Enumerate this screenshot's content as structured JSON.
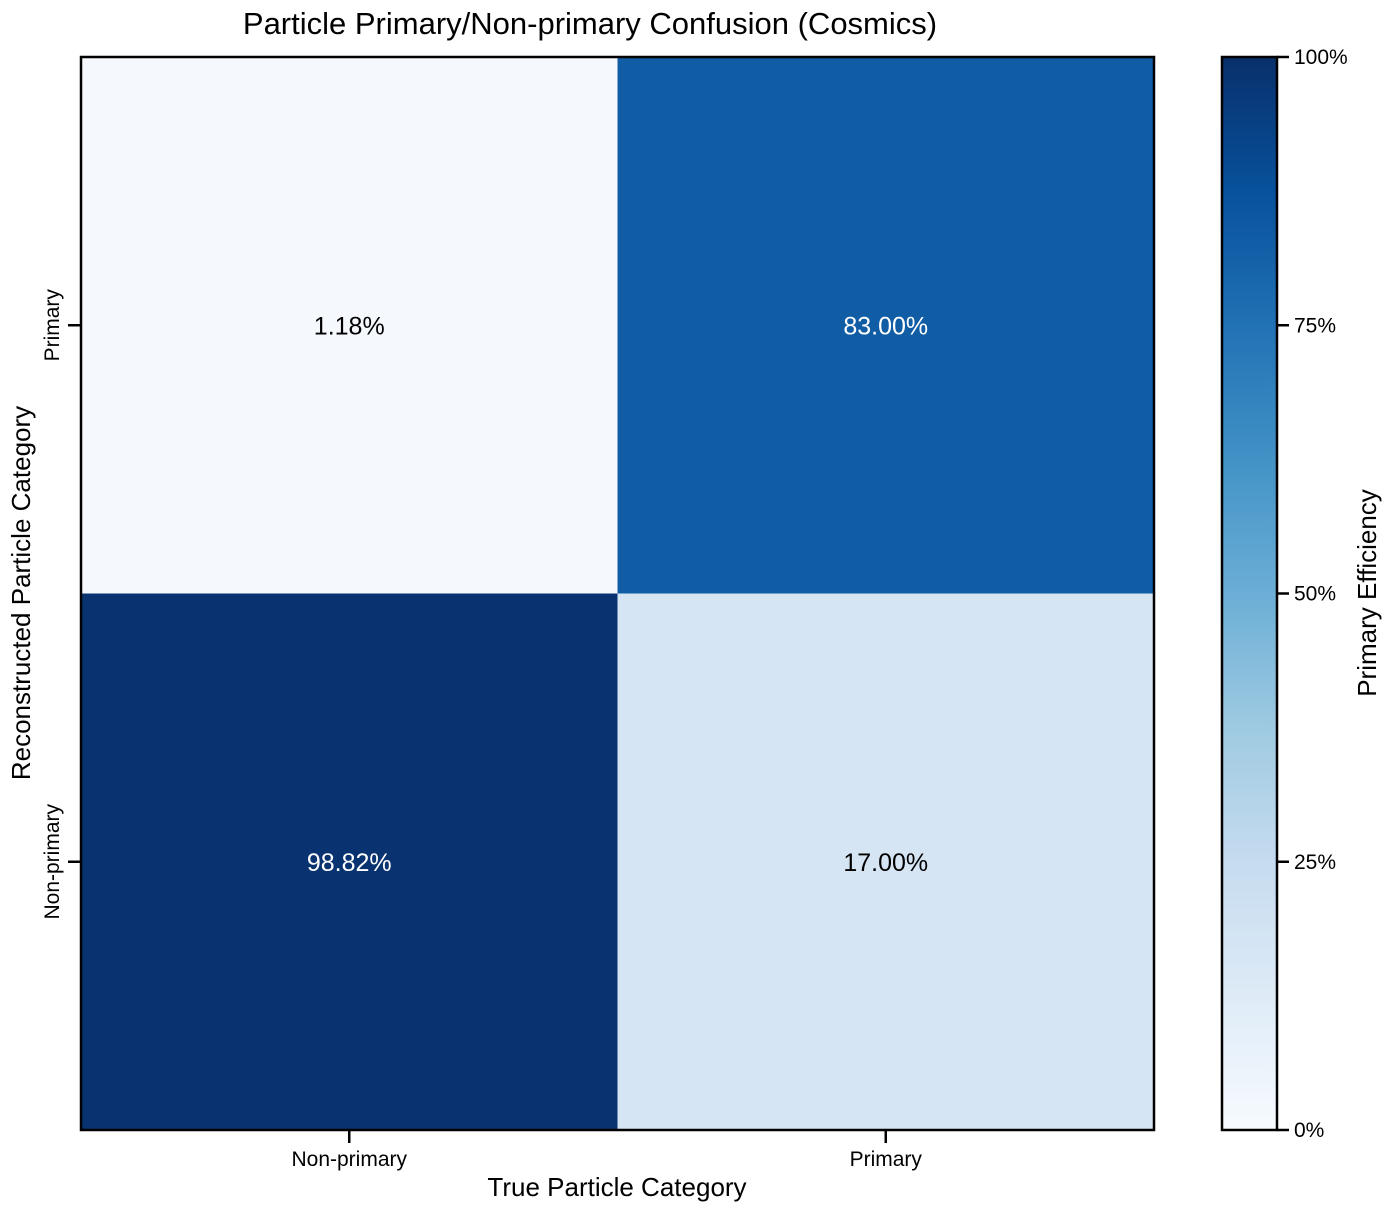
{
  "chart_data": {
    "type": "heatmap",
    "title": "Particle Primary/Non-primary Confusion (Cosmics)",
    "xlabel": "True Particle Category",
    "ylabel": "Reconstructed Particle Category",
    "x_categories": [
      "Non-primary",
      "Primary"
    ],
    "y_categories": [
      "Primary",
      "Non-primary"
    ],
    "cells": [
      {
        "x": "Non-primary",
        "y": "Primary",
        "value": 1.18,
        "label": "1.18%"
      },
      {
        "x": "Primary",
        "y": "Primary",
        "value": 83.0,
        "label": "83.00%"
      },
      {
        "x": "Non-primary",
        "y": "Non-primary",
        "value": 98.82,
        "label": "98.82%"
      },
      {
        "x": "Primary",
        "y": "Non-primary",
        "value": 17.0,
        "label": "17.00%"
      }
    ],
    "colorbar": {
      "label": "Primary Efficiency",
      "colormap": "Blues",
      "range": [
        0,
        100
      ],
      "ticks": [
        {
          "value": 0,
          "label": "0%"
        },
        {
          "value": 25,
          "label": "25%"
        },
        {
          "value": 50,
          "label": "50%"
        },
        {
          "value": 75,
          "label": "75%"
        },
        {
          "value": 100,
          "label": "100%"
        }
      ]
    },
    "grid": false
  }
}
